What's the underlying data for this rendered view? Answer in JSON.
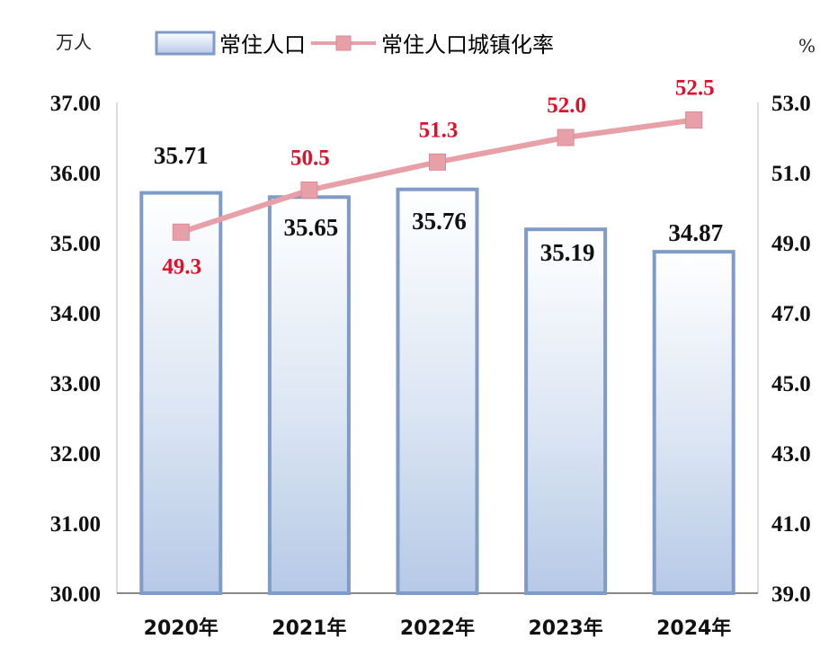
{
  "chart_data": {
    "type": "bar",
    "categories": [
      "2020年",
      "2021年",
      "2022年",
      "2023年",
      "2024年"
    ],
    "series": [
      {
        "name": "常住人口",
        "type": "bar",
        "axis": "left",
        "values": [
          35.71,
          35.65,
          35.76,
          35.19,
          34.87
        ],
        "labels": [
          "35.71",
          "35.65",
          "35.76",
          "35.19",
          "34.87"
        ],
        "color": "#7f9bc8"
      },
      {
        "name": "常住人口城镇化率",
        "type": "line",
        "axis": "right",
        "values": [
          49.3,
          50.5,
          51.3,
          52.0,
          52.5
        ],
        "labels": [
          "49.3",
          "50.5",
          "51.3",
          "52.0",
          "52.5"
        ],
        "color": "#e8a0a8"
      }
    ],
    "ylabel": "万人",
    "y2label": "%",
    "ylim": [
      30,
      37
    ],
    "y2lim": [
      39,
      53
    ],
    "yticks": [
      "30.00",
      "31.00",
      "32.00",
      "33.00",
      "34.00",
      "35.00",
      "36.00",
      "37.00"
    ],
    "y2ticks": [
      "39.0",
      "41.0",
      "43.0",
      "45.0",
      "47.0",
      "49.0",
      "51.0",
      "53.0"
    ],
    "legend_position": "top",
    "grid": false,
    "label_color": "#e0102a"
  }
}
